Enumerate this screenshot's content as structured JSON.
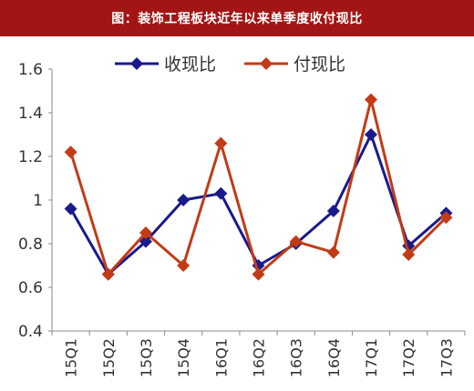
{
  "header": {
    "title": "图：装饰工程板块近年以来单季度收付现比"
  },
  "colors": {
    "banner": "#a31515",
    "series_blue": "#1a1a8c",
    "series_red": "#c23b16"
  },
  "chart_data": {
    "type": "line",
    "title": "图：装饰工程板块近年以来单季度收付现比",
    "xlabel": "",
    "ylabel": "",
    "categories": [
      "15Q1",
      "15Q2",
      "15Q3",
      "15Q4",
      "16Q1",
      "16Q2",
      "16Q3",
      "16Q4",
      "17Q1",
      "17Q2",
      "17Q3"
    ],
    "ylim": [
      0.4,
      1.6
    ],
    "yticks": [
      "0.4",
      "0.6",
      "0.8",
      "1",
      "1.2",
      "1.4",
      "1.6"
    ],
    "legend_position": "top",
    "grid": false,
    "series": [
      {
        "name": "收现比",
        "color": "#1a1a8c",
        "marker": "diamond",
        "values": [
          0.96,
          0.66,
          0.81,
          1.0,
          1.03,
          0.7,
          0.8,
          0.95,
          1.3,
          0.79,
          0.94
        ]
      },
      {
        "name": "付现比",
        "color": "#c23b16",
        "marker": "diamond",
        "values": [
          1.22,
          0.66,
          0.85,
          0.7,
          1.26,
          0.66,
          0.81,
          0.76,
          1.46,
          0.75,
          0.92
        ]
      }
    ]
  }
}
